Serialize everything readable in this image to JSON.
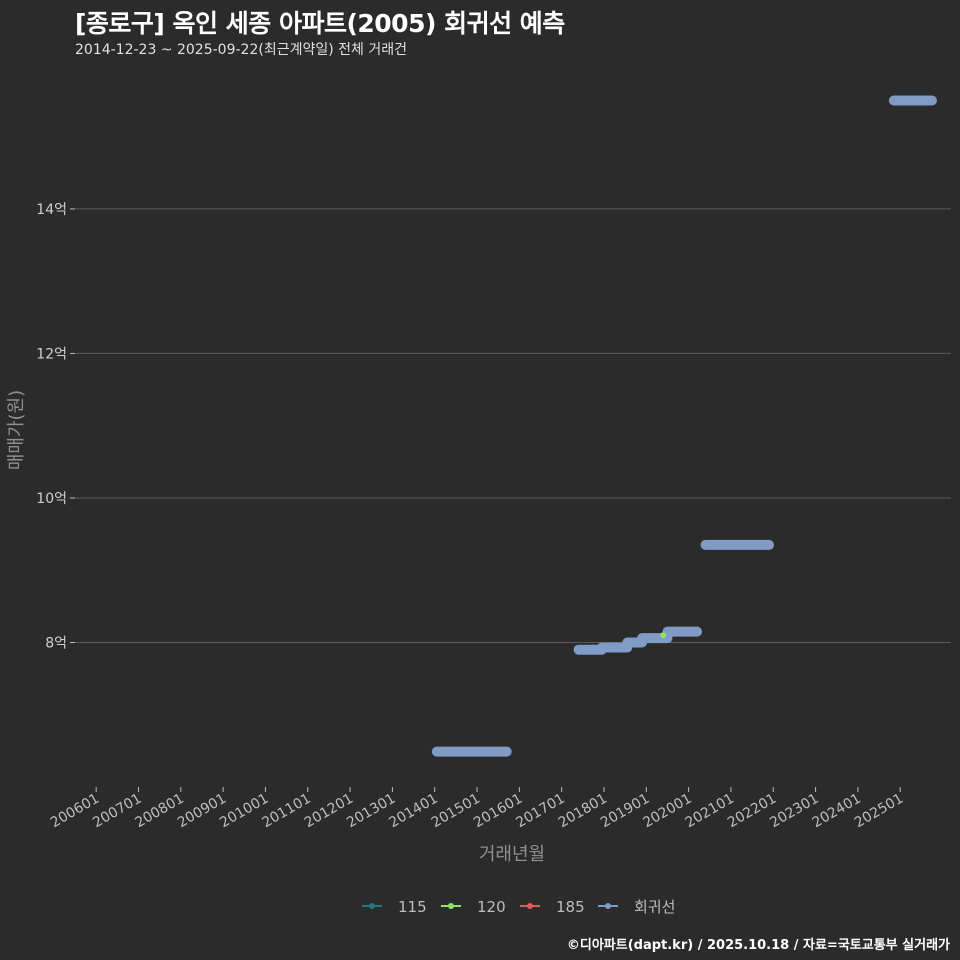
{
  "title": "[종로구] 옥인 세종 아파트(2005) 회귀선 예측",
  "subtitle": "2014-12-23 ~ 2025-09-22(최근계약일) 전체 거래건",
  "caption": "©디아파트(dapt.kr) / 2025.10.18 / 자료=국토교통부 실거래가",
  "colors": {
    "background": "#2b2b2b",
    "grid": "#5c5c5c",
    "regression": "#7f9bc6",
    "s115": "#1f7a7a",
    "s120": "#90e36a",
    "s185": "#e05a5a"
  },
  "chart_data": {
    "type": "line",
    "xlabel": "거래년월",
    "ylabel": "매매가(원)",
    "x_range": [
      2005.5,
      2026.2
    ],
    "ylim": [
      6.0,
      15.95
    ],
    "yticks": [
      {
        "value": 8,
        "label": "8억"
      },
      {
        "value": 10,
        "label": "10억"
      },
      {
        "value": 12,
        "label": "12억"
      },
      {
        "value": 14,
        "label": "14억"
      }
    ],
    "xticks": [
      {
        "value": 2006.0,
        "label": "200601"
      },
      {
        "value": 2007.0,
        "label": "200701"
      },
      {
        "value": 2008.0,
        "label": "200801"
      },
      {
        "value": 2009.0,
        "label": "200901"
      },
      {
        "value": 2010.0,
        "label": "201001"
      },
      {
        "value": 2011.0,
        "label": "201101"
      },
      {
        "value": 2012.0,
        "label": "201201"
      },
      {
        "value": 2013.0,
        "label": "201301"
      },
      {
        "value": 2014.0,
        "label": "201401"
      },
      {
        "value": 2015.0,
        "label": "201501"
      },
      {
        "value": 2016.0,
        "label": "201601"
      },
      {
        "value": 2017.0,
        "label": "201701"
      },
      {
        "value": 2018.0,
        "label": "201801"
      },
      {
        "value": 2019.0,
        "label": "201901"
      },
      {
        "value": 2020.0,
        "label": "202001"
      },
      {
        "value": 2021.0,
        "label": "202101"
      },
      {
        "value": 2022.0,
        "label": "202201"
      },
      {
        "value": 2023.0,
        "label": "202301"
      },
      {
        "value": 2024.0,
        "label": "202401"
      },
      {
        "value": 2025.0,
        "label": "202501"
      }
    ],
    "legend": [
      {
        "name": "115",
        "color": "#1f7a7a"
      },
      {
        "name": "120",
        "color": "#90e36a"
      },
      {
        "name": "185",
        "color": "#e05a5a"
      },
      {
        "name": "회귀선",
        "color": "#7f9bc6"
      }
    ],
    "series": [
      {
        "name": "회귀선",
        "segments": [
          {
            "x": [
              2014.05,
              2015.7
            ],
            "y": [
              6.49,
              6.49
            ]
          },
          {
            "x": [
              2017.4,
              2017.95
            ],
            "y": [
              7.9,
              7.9
            ]
          },
          {
            "x": [
              2017.95,
              2018.55
            ],
            "y": [
              7.93,
              7.93
            ]
          },
          {
            "x": [
              2018.55,
              2018.9
            ],
            "y": [
              8.0,
              8.0
            ]
          },
          {
            "x": [
              2018.9,
              2019.5
            ],
            "y": [
              8.06,
              8.06
            ]
          },
          {
            "x": [
              2019.5,
              2020.2
            ],
            "y": [
              8.15,
              8.15
            ]
          },
          {
            "x": [
              2020.4,
              2021.9
            ],
            "y": [
              9.35,
              9.35
            ]
          },
          {
            "x": [
              2024.85,
              2025.75
            ],
            "y": [
              15.5,
              15.5
            ]
          }
        ]
      },
      {
        "name": "120",
        "points": [
          {
            "x": 2019.4,
            "y": 8.1
          }
        ]
      }
    ]
  }
}
